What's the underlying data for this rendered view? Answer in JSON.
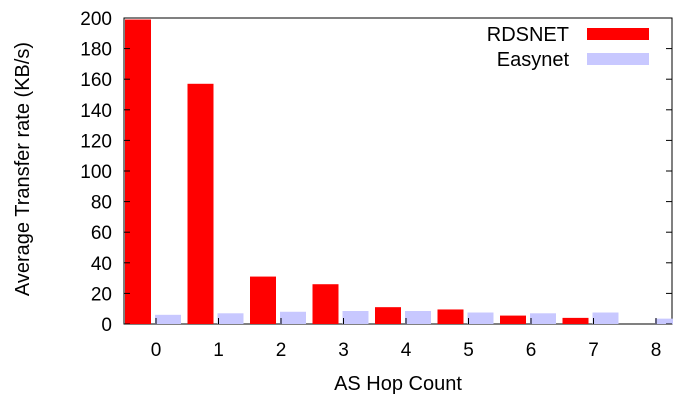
{
  "chart_data": {
    "type": "bar",
    "title": "",
    "xlabel": "AS Hop Count",
    "ylabel": "Average Transfer rate (KB/s)",
    "categories": [
      "0",
      "1",
      "2",
      "3",
      "4",
      "5",
      "6",
      "7",
      "8"
    ],
    "y_ticks": [
      0,
      20,
      40,
      60,
      80,
      100,
      120,
      140,
      160,
      180,
      200
    ],
    "ylim": [
      0,
      200
    ],
    "legend_position": "top-right",
    "series": [
      {
        "name": "RDSNET",
        "color": "#ff0000",
        "values": [
          199,
          157,
          31,
          26,
          11,
          9.5,
          5.5,
          4,
          null
        ]
      },
      {
        "name": "Easynet",
        "color": "#c8c8ff",
        "values": [
          6,
          7,
          8,
          8.5,
          8.5,
          7.5,
          7,
          7.5,
          3.5
        ]
      }
    ]
  }
}
